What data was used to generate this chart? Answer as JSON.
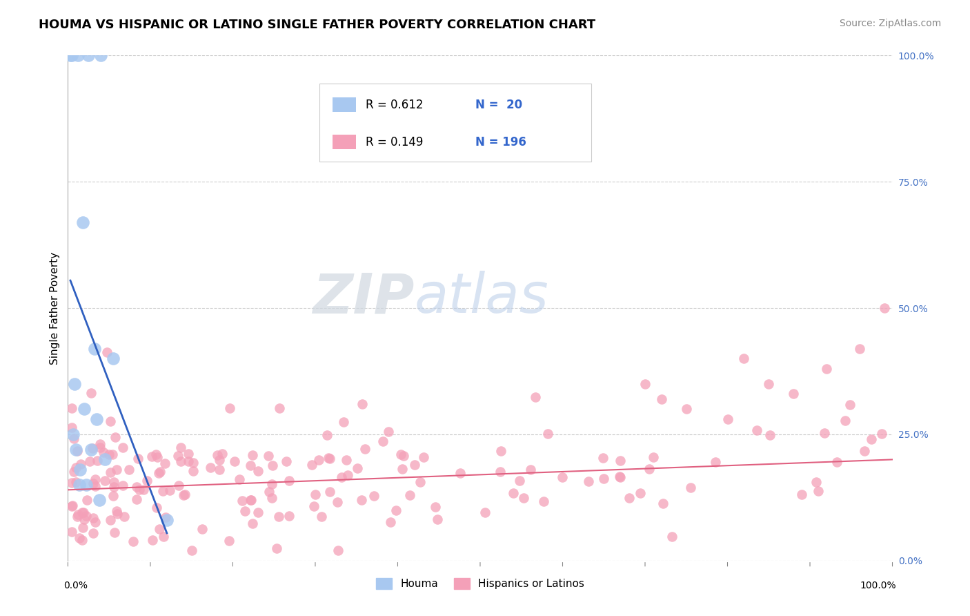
{
  "title": "HOUMA VS HISPANIC OR LATINO SINGLE FATHER POVERTY CORRELATION CHART",
  "source": "Source: ZipAtlas.com",
  "ylabel": "Single Father Poverty",
  "ytick_values": [
    0,
    25,
    50,
    75,
    100
  ],
  "xlim": [
    0,
    100
  ],
  "ylim": [
    0,
    100
  ],
  "legend_blue_r": "R = 0.612",
  "legend_blue_n": "N =  20",
  "legend_pink_r": "R = 0.149",
  "legend_pink_n": "N = 196",
  "legend_label_blue": "Houma",
  "legend_label_pink": "Hispanics or Latinos",
  "blue_color": "#A8C8F0",
  "pink_color": "#F4A0B8",
  "blue_line_color": "#3060C0",
  "pink_line_color": "#E06080",
  "background_color": "#FFFFFF",
  "grid_color": "#CCCCCC",
  "houma_x": [
    0.3,
    1.2,
    2.5,
    4.0,
    0.5,
    1.8,
    3.2,
    5.5,
    0.8,
    2.0,
    3.5,
    1.0,
    2.8,
    4.5,
    1.5,
    2.2,
    3.8,
    12.0,
    0.6,
    1.4
  ],
  "houma_y": [
    100,
    100,
    100,
    100,
    100,
    67,
    42,
    40,
    35,
    30,
    28,
    22,
    22,
    20,
    18,
    15,
    12,
    8,
    25,
    15
  ],
  "blue_line_x0": 0.3,
  "blue_line_x1": 12.0,
  "pink_line_x0": 0,
  "pink_line_x1": 100,
  "pink_line_y0": 14,
  "pink_line_y1": 20
}
